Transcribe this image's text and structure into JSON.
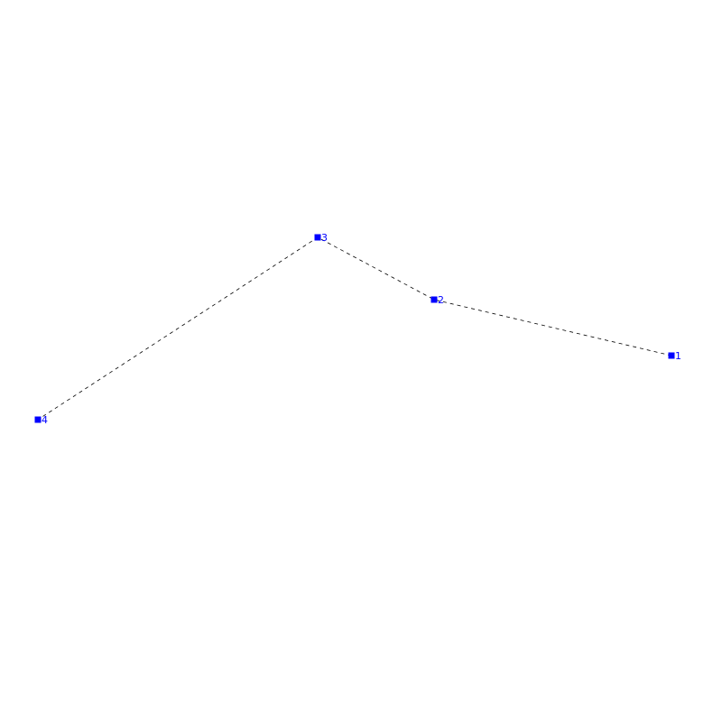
{
  "diagram": {
    "colors": {
      "marker": "#0000ff",
      "label": "#0000ff",
      "line": "#000000",
      "background": "#ffffff"
    },
    "line_style": "dashed",
    "marker_shape": "square",
    "nodes": [
      {
        "label": "1"
      },
      {
        "label": "2"
      },
      {
        "label": "3"
      },
      {
        "label": "4"
      }
    ]
  }
}
